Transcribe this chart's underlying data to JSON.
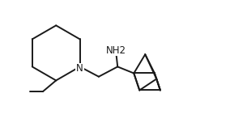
{
  "background_color": "#ffffff",
  "line_color": "#1a1a1a",
  "line_width": 1.4,
  "text_color": "#1a1a1a",
  "font_size": 8.5,
  "nh2_label": "NH2",
  "n_label": "N",
  "fig_width": 2.84,
  "fig_height": 1.47,
  "dpi": 100,
  "xlim": [
    0.0,
    8.5
  ],
  "ylim": [
    0.5,
    5.0
  ]
}
